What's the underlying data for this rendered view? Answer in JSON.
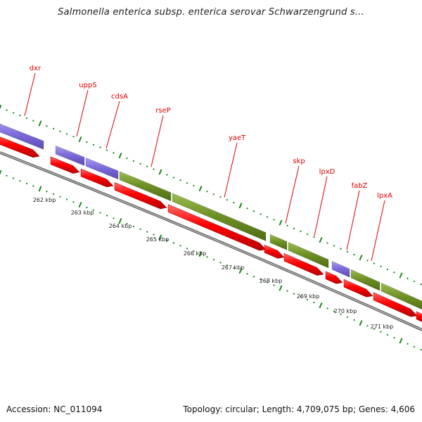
{
  "title": "Salmonella enterica subsp. enterica serovar Schwarzengrund s...",
  "footer": {
    "accession_label": "Accession:",
    "accession": "NC_011094",
    "topology_label": "Topology:",
    "topology": "circular",
    "length_label": "Length:",
    "length": "4,709,075 bp",
    "genes_label": "Genes:",
    "genes": "4,606"
  },
  "colors": {
    "cds_arrow": "#ff0000",
    "blue_block": "#7b68d8",
    "green_block": "#6b8e23",
    "backbone": "#888888",
    "tick_green": "#1a8a1a",
    "label_red": "#e00000"
  },
  "scale": {
    "ticks": [
      "262 kbp",
      "263 kbp",
      "264 kbp",
      "265 kbp",
      "266 kbp",
      "267 kbp",
      "268 kbp",
      "269 kbp",
      "270 kbp",
      "271 kbp"
    ]
  },
  "gene_labels": [
    "dxr",
    "uppS",
    "cdsA",
    "rseP",
    "yaeT",
    "skp",
    "lpxD",
    "fabZ",
    "lpxA"
  ]
}
